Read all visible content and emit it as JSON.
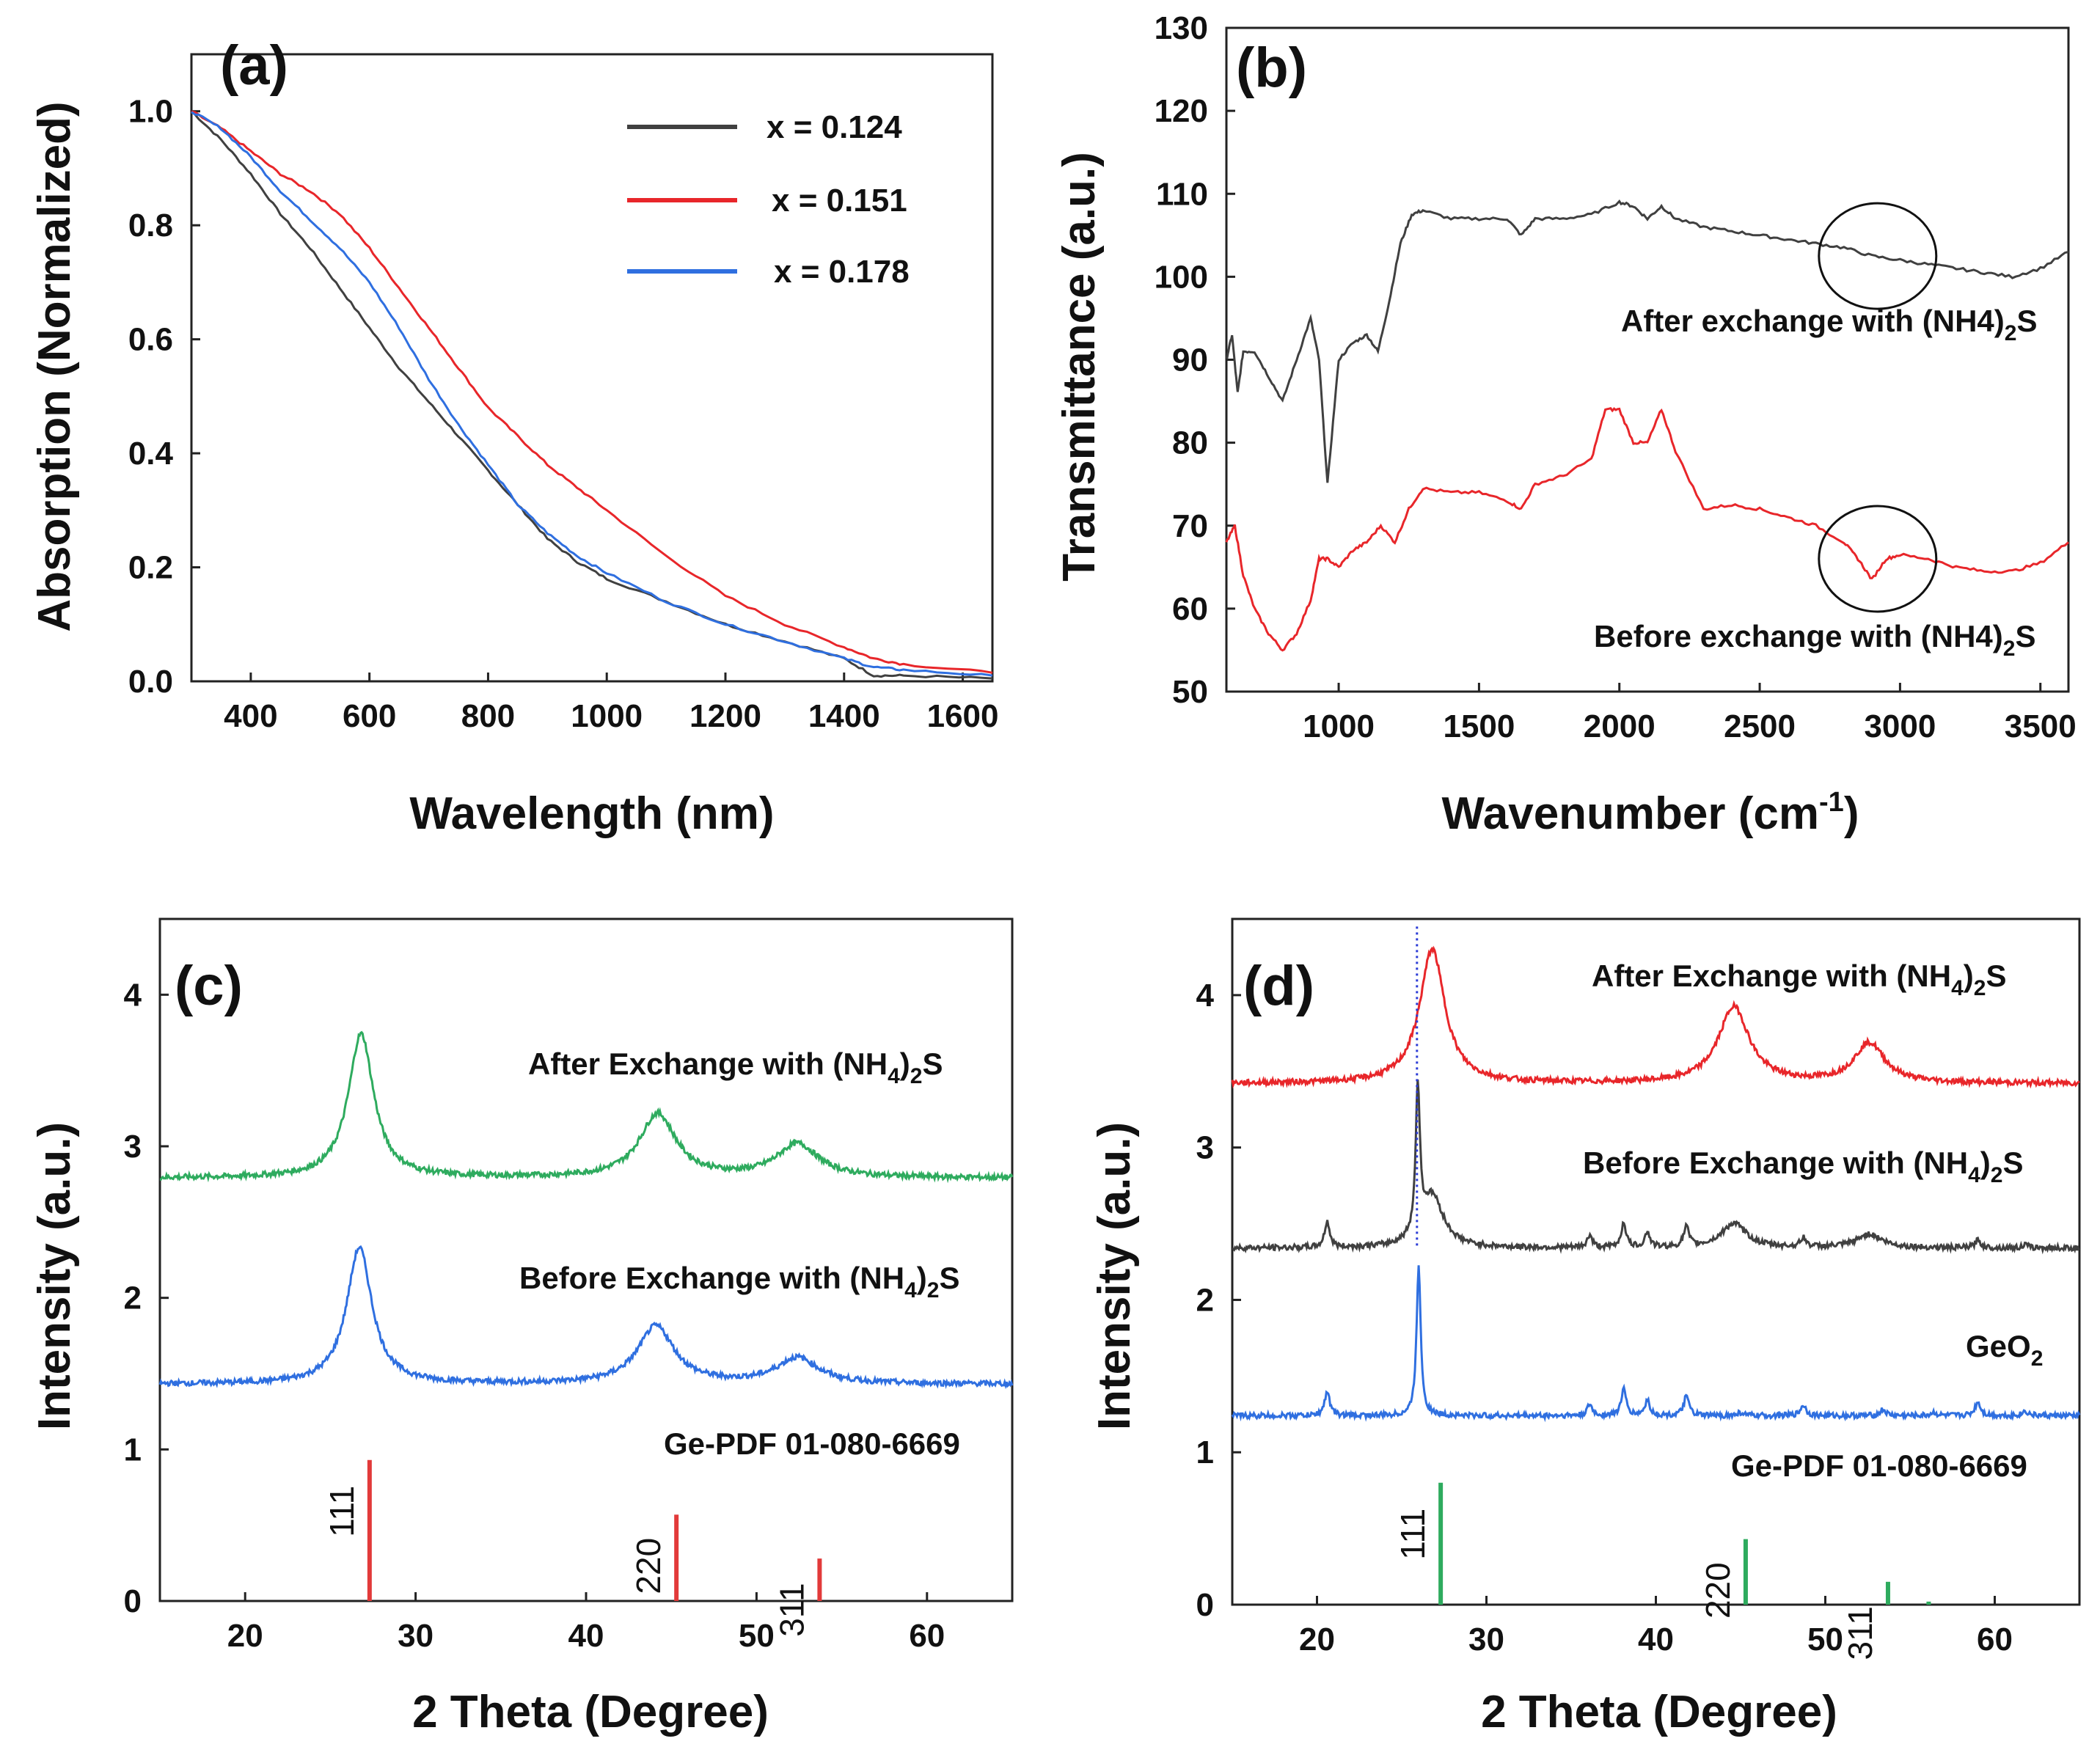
{
  "colors": {
    "black": "#404040",
    "red": "#e8262a",
    "blue": "#2f6fe0",
    "green": "#2eab5e",
    "refRed": "#e23a3a",
    "refGreen": "#2eab5e",
    "dotted": "#2b3bd6"
  },
  "chart_data": [
    {
      "id": "a",
      "type": "line",
      "panel_label": "(a)",
      "xlabel": "Wavelength (nm)",
      "ylabel": "Absorption (Normalized)",
      "xlim": [
        300,
        1650
      ],
      "ylim": [
        0,
        1.1
      ],
      "xticks": [
        400,
        600,
        800,
        1000,
        1200,
        1400,
        1600
      ],
      "yticks": [
        "0.0",
        "0.2",
        "0.4",
        "0.6",
        "0.8",
        "1.0"
      ],
      "legend": [
        {
          "label": "x = 0.124",
          "color": "black"
        },
        {
          "label": "x = 0.151",
          "color": "red"
        },
        {
          "label": "x = 0.178",
          "color": "blue"
        }
      ],
      "series": [
        {
          "name": "x = 0.124",
          "color": "black",
          "x": [
            300,
            350,
            400,
            450,
            500,
            550,
            600,
            650,
            700,
            750,
            800,
            850,
            900,
            950,
            1000,
            1100,
            1200,
            1300,
            1400,
            1450,
            1500,
            1650
          ],
          "y": [
            1.0,
            0.95,
            0.89,
            0.82,
            0.76,
            0.69,
            0.62,
            0.55,
            0.49,
            0.43,
            0.37,
            0.31,
            0.25,
            0.21,
            0.18,
            0.14,
            0.1,
            0.07,
            0.04,
            0.01,
            0.01,
            0.005
          ]
        },
        {
          "name": "x = 0.151",
          "color": "red",
          "x": [
            300,
            350,
            400,
            450,
            500,
            550,
            600,
            650,
            700,
            750,
            800,
            850,
            900,
            950,
            1000,
            1100,
            1200,
            1300,
            1400,
            1450,
            1500,
            1650
          ],
          "y": [
            1.0,
            0.97,
            0.93,
            0.89,
            0.86,
            0.82,
            0.76,
            0.69,
            0.62,
            0.55,
            0.48,
            0.43,
            0.38,
            0.34,
            0.3,
            0.22,
            0.15,
            0.1,
            0.06,
            0.04,
            0.03,
            0.015
          ]
        },
        {
          "name": "x = 0.178",
          "color": "blue",
          "x": [
            300,
            350,
            400,
            450,
            500,
            550,
            600,
            650,
            700,
            750,
            800,
            850,
            900,
            950,
            1000,
            1100,
            1200,
            1300,
            1400,
            1450,
            1500,
            1650
          ],
          "y": [
            1.0,
            0.97,
            0.92,
            0.86,
            0.81,
            0.76,
            0.7,
            0.62,
            0.53,
            0.45,
            0.38,
            0.31,
            0.26,
            0.22,
            0.19,
            0.14,
            0.1,
            0.07,
            0.04,
            0.025,
            0.02,
            0.01
          ]
        }
      ]
    },
    {
      "id": "b",
      "type": "line",
      "panel_label": "(b)",
      "xlabel_main": "Wavenumber (cm",
      "xlabel_sup": "-1",
      "xlabel_end": ")",
      "ylabel": "Transmittance (a.u.)",
      "xlim": [
        600,
        3600
      ],
      "ylim": [
        50,
        130
      ],
      "xticks": [
        1000,
        1500,
        2000,
        2500,
        3000,
        3500
      ],
      "yticks": [
        50,
        60,
        70,
        80,
        90,
        100,
        110,
        120,
        130
      ],
      "annotations": [
        {
          "text": "After exchange with (NH4)",
          "sub": "2",
          "tail": "S",
          "series": "After"
        },
        {
          "text": "Before exchange with (NH4)",
          "sub": "2",
          "tail": "S",
          "series": "Before"
        }
      ],
      "circles": [
        {
          "x": 2920,
          "y": 102.5
        },
        {
          "x": 2920,
          "y": 66
        }
      ],
      "series": [
        {
          "name": "After",
          "color": "black",
          "x": [
            600,
            620,
            640,
            660,
            700,
            750,
            800,
            850,
            900,
            930,
            960,
            1000,
            1050,
            1100,
            1140,
            1180,
            1220,
            1260,
            1300,
            1400,
            1500,
            1600,
            1650,
            1700,
            1800,
            1900,
            2000,
            2050,
            2100,
            2150,
            2200,
            2300,
            2400,
            2500,
            2600,
            2700,
            2800,
            2900,
            3000,
            3100,
            3200,
            3300,
            3400,
            3500,
            3600
          ],
          "y": [
            90,
            93,
            86,
            91,
            91,
            88,
            85,
            90,
            95,
            90,
            75,
            90,
            92,
            93,
            91,
            97,
            104,
            107.5,
            108,
            107,
            107,
            107,
            105,
            107,
            107,
            107.5,
            109,
            108.5,
            107,
            108.5,
            107,
            106,
            105.5,
            105,
            104.5,
            104,
            103.5,
            102.5,
            102,
            101.5,
            101,
            100.5,
            100,
            101,
            103
          ]
        },
        {
          "name": "Before",
          "color": "red",
          "x": [
            600,
            630,
            660,
            700,
            750,
            800,
            850,
            900,
            930,
            960,
            1000,
            1050,
            1100,
            1150,
            1200,
            1250,
            1300,
            1400,
            1500,
            1600,
            1650,
            1700,
            1800,
            1900,
            1950,
            2000,
            2050,
            2100,
            2150,
            2200,
            2300,
            2400,
            2500,
            2600,
            2700,
            2800,
            2850,
            2900,
            2950,
            3000,
            3100,
            3200,
            3300,
            3400,
            3500,
            3600
          ],
          "y": [
            68,
            70,
            64,
            60,
            57,
            55,
            57,
            61,
            66,
            66,
            65,
            67,
            68,
            70,
            68,
            72,
            74.5,
            74,
            74,
            73,
            72,
            75,
            76,
            78,
            84,
            84,
            80,
            80,
            84,
            79,
            72,
            72.5,
            72,
            71,
            70,
            68,
            66,
            63.5,
            66,
            66.5,
            66,
            65,
            64.5,
            64.5,
            65.5,
            68
          ]
        }
      ]
    },
    {
      "id": "c",
      "type": "line",
      "panel_label": "(c)",
      "xlabel": "2 Theta (Degree)",
      "ylabel": "Intensity (a.u.)",
      "xlim": [
        15,
        65
      ],
      "ylim": [
        0,
        4.5
      ],
      "xticks": [
        20,
        30,
        40,
        50,
        60
      ],
      "yticks": [
        0,
        1,
        2,
        3,
        4
      ],
      "annotations": [
        {
          "text": "After Exchange with (NH",
          "sub": "4",
          "tail": ")",
          "sub2": "2",
          "tail2": "S"
        },
        {
          "text": "Before Exchange with (NH",
          "sub": "4",
          "tail": ")",
          "sub2": "2",
          "tail2": "S"
        },
        {
          "text": "Ge-PDF 01-080-6669"
        }
      ],
      "series": [
        {
          "name": "After Exchange",
          "color": "green",
          "baseline": 2.79,
          "peaks": [
            {
              "pos": 26.8,
              "height": 0.95,
              "width": 0.9
            },
            {
              "pos": 44.2,
              "height": 0.42,
              "width": 1.3
            },
            {
              "pos": 52.4,
              "height": 0.22,
              "width": 1.5
            }
          ]
        },
        {
          "name": "Before Exchange",
          "color": "blue",
          "baseline": 1.43,
          "peaks": [
            {
              "pos": 26.7,
              "height": 0.9,
              "width": 0.9
            },
            {
              "pos": 44.1,
              "height": 0.38,
              "width": 1.3
            },
            {
              "pos": 52.4,
              "height": 0.17,
              "width": 1.5
            }
          ]
        }
      ],
      "reference": {
        "color": "refRed",
        "sticks": [
          {
            "pos": 27.3,
            "height": 0.93,
            "label": "111"
          },
          {
            "pos": 45.3,
            "height": 0.57,
            "label": "220"
          },
          {
            "pos": 53.7,
            "height": 0.28,
            "label": "311"
          }
        ]
      }
    },
    {
      "id": "d",
      "type": "line",
      "panel_label": "(d)",
      "xlabel": "2 Theta (Degree)",
      "ylabel": "Intensity (a.u.)",
      "xlim": [
        15,
        65
      ],
      "ylim": [
        0,
        4.5
      ],
      "xticks": [
        20,
        30,
        40,
        50,
        60
      ],
      "yticks": [
        0,
        1,
        2,
        3,
        4
      ],
      "dotted_line_x": 25.9,
      "annotations": [
        {
          "text": "After Exchange with (NH",
          "sub": "4",
          "tail": ")",
          "sub2": "2",
          "tail2": "S"
        },
        {
          "text": "Before Exchange with (NH",
          "sub": "4",
          "tail": ")",
          "sub2": "2",
          "tail2": "S"
        },
        {
          "text": "GeO",
          "sub": "2",
          "tail": ""
        },
        {
          "text": "Ge-PDF 01-080-6669"
        }
      ],
      "series": [
        {
          "name": "After Exchange",
          "color": "red",
          "baseline": 3.42,
          "peaks": [
            {
              "pos": 26.8,
              "height": 0.88,
              "width": 0.9
            },
            {
              "pos": 44.6,
              "height": 0.5,
              "width": 1.1
            },
            {
              "pos": 52.6,
              "height": 0.26,
              "width": 1.1
            }
          ]
        },
        {
          "name": "Before Exchange",
          "color": "black",
          "baseline": 2.34,
          "peaks": [
            {
              "pos": 20.6,
              "height": 0.17,
              "width": 0.18
            },
            {
              "pos": 25.95,
              "height": 0.95,
              "width": 0.15
            },
            {
              "pos": 26.8,
              "height": 0.34,
              "width": 0.8
            },
            {
              "pos": 36.1,
              "height": 0.08,
              "width": 0.18
            },
            {
              "pos": 38.1,
              "height": 0.16,
              "width": 0.18
            },
            {
              "pos": 39.5,
              "height": 0.1,
              "width": 0.18
            },
            {
              "pos": 41.8,
              "height": 0.13,
              "width": 0.18
            },
            {
              "pos": 44.6,
              "height": 0.16,
              "width": 0.9
            },
            {
              "pos": 48.7,
              "height": 0.06,
              "width": 0.2
            },
            {
              "pos": 52.6,
              "height": 0.09,
              "width": 0.9
            },
            {
              "pos": 59.0,
              "height": 0.05,
              "width": 0.2
            },
            {
              "pos": 61.8,
              "height": 0.02,
              "width": 0.2
            }
          ]
        },
        {
          "name": "GeO2",
          "color": "blue",
          "baseline": 1.24,
          "peaks": [
            {
              "pos": 20.6,
              "height": 0.16,
              "width": 0.18
            },
            {
              "pos": 26.0,
              "height": 0.98,
              "width": 0.15
            },
            {
              "pos": 36.1,
              "height": 0.07,
              "width": 0.18
            },
            {
              "pos": 38.1,
              "height": 0.17,
              "width": 0.18
            },
            {
              "pos": 39.5,
              "height": 0.1,
              "width": 0.18
            },
            {
              "pos": 41.8,
              "height": 0.13,
              "width": 0.18
            },
            {
              "pos": 45.0,
              "height": 0.02,
              "width": 0.2
            },
            {
              "pos": 48.7,
              "height": 0.07,
              "width": 0.2
            },
            {
              "pos": 53.4,
              "height": 0.04,
              "width": 0.2
            },
            {
              "pos": 56.4,
              "height": 0.02,
              "width": 0.2
            },
            {
              "pos": 59.0,
              "height": 0.09,
              "width": 0.2
            },
            {
              "pos": 61.8,
              "height": 0.03,
              "width": 0.2
            }
          ]
        }
      ],
      "reference": {
        "color": "refGreen",
        "sticks": [
          {
            "pos": 27.3,
            "height": 0.8,
            "label": "111"
          },
          {
            "pos": 45.3,
            "height": 0.43,
            "label": "220"
          },
          {
            "pos": 53.7,
            "height": 0.15,
            "label": "311"
          },
          {
            "pos": 56.1,
            "height": 0.02,
            "label": ""
          }
        ]
      }
    }
  ]
}
